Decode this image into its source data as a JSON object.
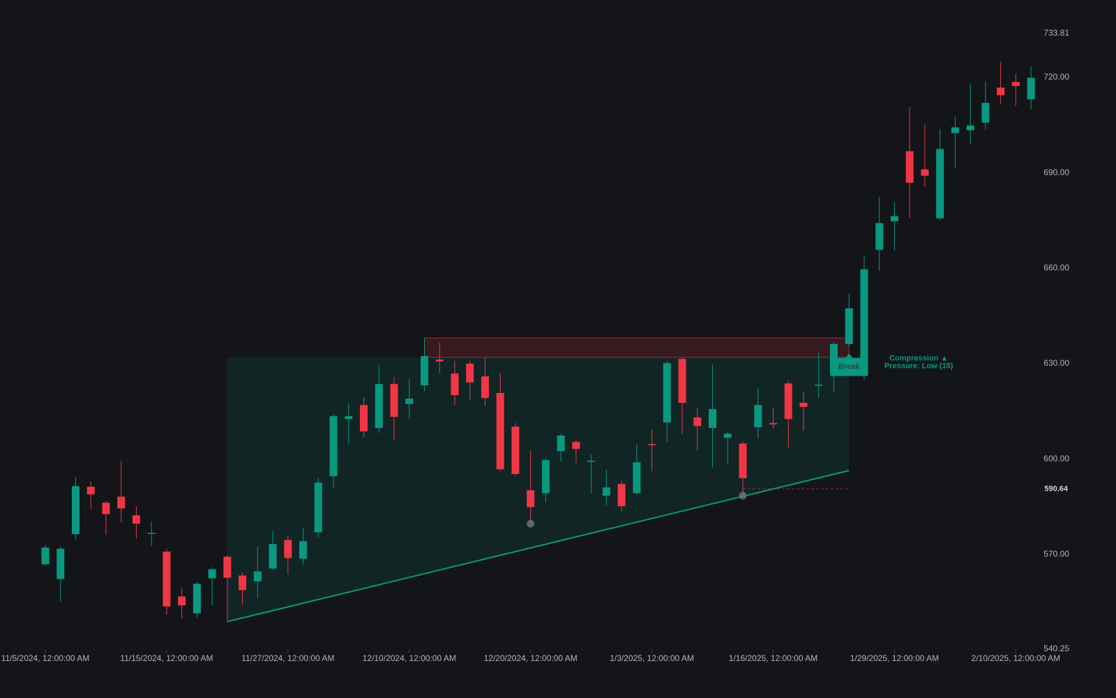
{
  "chart_data": {
    "type": "candlestick",
    "x": [
      "11/5/2024",
      "11/6/2024",
      "11/7/2024",
      "11/8/2024",
      "11/11/2024",
      "11/12/2024",
      "11/13/2024",
      "11/14/2024",
      "11/15/2024",
      "11/18/2024",
      "11/19/2024",
      "11/20/2024",
      "11/21/2024",
      "11/22/2024",
      "11/25/2024",
      "11/26/2024",
      "11/27/2024",
      "11/29/2024",
      "12/2/2024",
      "12/3/2024",
      "12/4/2024",
      "12/5/2024",
      "12/6/2024",
      "12/9/2024",
      "12/10/2024",
      "12/11/2024",
      "12/12/2024",
      "12/13/2024",
      "12/16/2024",
      "12/17/2024",
      "12/18/2024",
      "12/19/2024",
      "12/20/2024",
      "12/23/2024",
      "12/24/2024",
      "12/26/2024",
      "12/27/2024",
      "12/30/2024",
      "12/31/2024",
      "1/2/2025",
      "1/3/2025",
      "1/6/2025",
      "1/7/2025",
      "1/8/2025",
      "1/10/2025",
      "1/13/2025",
      "1/14/2025",
      "1/15/2025",
      "1/16/2025",
      "1/17/2025",
      "1/21/2025",
      "1/22/2025",
      "1/23/2025",
      "1/24/2025",
      "1/27/2025",
      "1/28/2025",
      "1/29/2025",
      "1/30/2025",
      "1/31/2025",
      "2/3/2025",
      "2/4/2025",
      "2/5/2025",
      "2/6/2025",
      "2/7/2025",
      "2/10/2025",
      "2/11/2025"
    ],
    "open": [
      566.9,
      562.3,
      576.4,
      591.3,
      586.3,
      588.2,
      582.3,
      576.6,
      570.9,
      556.8,
      551.5,
      562.5,
      569.3,
      563.4,
      561.6,
      565.6,
      574.6,
      568.7,
      577.0,
      594.6,
      612.6,
      617.0,
      609.8,
      623.6,
      617.3,
      623.2,
      631.3,
      626.9,
      630.0,
      626.0,
      620.8,
      610.2,
      590.2,
      589.3,
      602.5,
      605.4,
      599.2,
      588.5,
      592.2,
      589.3,
      604.7,
      611.5,
      631.5,
      613.1,
      609.8,
      606.7,
      604.9,
      610.0,
      611.3,
      623.8,
      617.7,
      623.2,
      627.1,
      636.2,
      626.3,
      665.8,
      674.8,
      696.8,
      691.1,
      675.7,
      702.5,
      703.4,
      705.8,
      716.8,
      718.6,
      713.1
    ],
    "high": [
      573.1,
      572.6,
      594.4,
      592.9,
      586.9,
      599.5,
      585.2,
      580.5,
      571.8,
      559.5,
      561.4,
      566.0,
      569.8,
      564.3,
      572.4,
      577.3,
      575.9,
      578.4,
      594.2,
      614.0,
      617.5,
      619.5,
      629.6,
      625.8,
      625.2,
      638.1,
      636.6,
      630.9,
      630.9,
      632.0,
      627.1,
      611.3,
      602.7,
      600.5,
      608.0,
      606.0,
      601.4,
      596.8,
      593.3,
      604.7,
      609.3,
      630.9,
      632.0,
      616.2,
      629.8,
      608.7,
      605.6,
      622.3,
      616.2,
      624.7,
      621.2,
      633.5,
      636.8,
      652.0,
      663.8,
      682.5,
      680.8,
      710.7,
      705.2,
      703.8,
      707.6,
      717.9,
      718.8,
      724.9,
      721.2,
      723.6
    ],
    "low": [
      566.3,
      555.1,
      574.8,
      584.3,
      576.2,
      580.1,
      575.1,
      572.6,
      551.1,
      549.8,
      550.2,
      554.0,
      548.9,
      554.2,
      556.2,
      565.2,
      563.8,
      566.9,
      575.3,
      591.1,
      604.9,
      606.9,
      608.2,
      606.0,
      612.6,
      621.4,
      627.1,
      617.0,
      618.6,
      616.6,
      596.2,
      594.8,
      579.7,
      586.3,
      599.2,
      598.8,
      589.3,
      585.4,
      583.6,
      588.9,
      596.2,
      605.4,
      608.0,
      602.7,
      597.3,
      598.4,
      588.5,
      606.5,
      609.6,
      603.6,
      608.9,
      619.2,
      621.0,
      635.3,
      624.9,
      659.2,
      665.6,
      675.9,
      685.6,
      675.1,
      691.5,
      699.0,
      703.6,
      711.5,
      711.1,
      710.0
    ],
    "close": [
      572.2,
      571.8,
      591.5,
      588.9,
      582.7,
      584.5,
      579.7,
      576.8,
      553.7,
      554.0,
      560.8,
      565.4,
      562.7,
      558.8,
      564.7,
      573.3,
      568.9,
      574.2,
      592.6,
      613.5,
      613.5,
      608.7,
      623.6,
      613.3,
      619.0,
      632.4,
      630.7,
      620.1,
      624.1,
      619.2,
      596.8,
      595.3,
      584.9,
      599.7,
      607.4,
      603.2,
      599.5,
      591.1,
      585.2,
      599.0,
      604.5,
      630.2,
      617.7,
      610.4,
      615.7,
      608.0,
      594.0,
      617.0,
      610.9,
      612.6,
      616.4,
      623.4,
      636.2,
      647.4,
      659.7,
      674.2,
      676.4,
      686.9,
      689.1,
      697.5,
      704.3,
      704.9,
      712.0,
      714.4,
      717.3,
      719.9
    ],
    "up_color": "#089981",
    "down_color": "#f23645",
    "ylim": [
      540.25,
      733.81
    ],
    "yticks": [
      540.25,
      {
        "value": 570,
        "label": "570.00"
      },
      {
        "value": 600,
        "label": "600.00"
      },
      {
        "value": 630,
        "label": "630.00"
      },
      {
        "value": 660,
        "label": "660.00"
      },
      {
        "value": 690,
        "label": "690.00"
      },
      {
        "value": 720,
        "label": "720.00"
      },
      733.81
    ],
    "xticks": [
      {
        "value": "11/5/2024",
        "label": "11/5/2024, 12:00:00 AM"
      },
      {
        "value": "11/15/2024",
        "label": "11/15/2024, 12:00:00 AM"
      },
      {
        "value": "11/27/2024",
        "label": "11/27/2024, 12:00:00 AM"
      },
      {
        "value": "12/10/2024",
        "label": "12/10/2024, 12:00:00 AM"
      },
      {
        "value": "12/20/2024",
        "label": "12/20/2024, 12:00:00 AM"
      },
      {
        "value": "1/3/2025",
        "label": "1/3/2025, 12:00:00 AM"
      },
      {
        "value": "1/16/2025",
        "label": "1/16/2025, 12:00:00 AM"
      },
      {
        "value": "1/29/2025",
        "label": "1/29/2025, 12:00:00 AM"
      },
      {
        "value": "2/10/2025",
        "label": "2/10/2025, 12:00:00 AM"
      }
    ],
    "range_box": {
      "x": [
        "11/21/2024",
        "1/24/2025"
      ],
      "top": 632.0
    },
    "resistance_zone": {
      "x": [
        "12/11/2024",
        "1/24/2025"
      ],
      "y": [
        632.0,
        638.1
      ]
    },
    "trendline": {
      "x": [
        "11/21/2024",
        "1/24/2025"
      ],
      "y": [
        548.9,
        596.4
      ]
    },
    "pivots": {
      "x": [
        "12/20/2024",
        "1/14/2025"
      ],
      "y": [
        579.7,
        588.5
      ]
    },
    "level": {
      "x": [
        "1/14/2025",
        "1/24/2025"
      ],
      "value": 590.64
    },
    "break_label": {
      "x": "1/24/2025",
      "y": 629.0,
      "text": "Break"
    },
    "annotation": {
      "x": "1/30/2025",
      "y": 630.5,
      "lines": [
        "Compression ▲",
        "Pressure: Low (15)"
      ]
    }
  }
}
